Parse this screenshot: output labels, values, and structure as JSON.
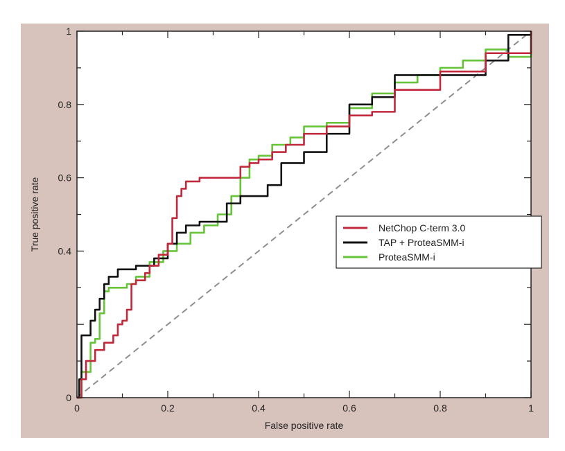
{
  "chart_data": {
    "type": "line",
    "title": "",
    "xlabel": "False positive rate",
    "ylabel": "True positive rate",
    "xlim": [
      0,
      1
    ],
    "ylim": [
      0,
      1
    ],
    "x_ticks": [
      0,
      0.2,
      0.4,
      0.6,
      0.8,
      1
    ],
    "x_tick_labels": [
      "0",
      "0.2",
      "0.4",
      "0.6",
      "0.8",
      "1"
    ],
    "y_ticks": [
      0,
      0.4,
      0.6,
      0.8,
      1
    ],
    "y_tick_labels": [
      "0",
      "0.4",
      "0.6",
      "0.8",
      "1"
    ],
    "grid": false,
    "legend_position": "right-middle",
    "series": [
      {
        "name": "NetChop C-term 3.0",
        "color": "#c0283c",
        "x": [
          0,
          0.01,
          0.02,
          0.04,
          0.06,
          0.08,
          0.09,
          0.1,
          0.11,
          0.12,
          0.13,
          0.15,
          0.16,
          0.18,
          0.2,
          0.21,
          0.22,
          0.23,
          0.24,
          0.27,
          0.3,
          0.33,
          0.36,
          0.38,
          0.4,
          0.43,
          0.46,
          0.5,
          0.55,
          0.6,
          0.65,
          0.7,
          0.8,
          0.9,
          1.0
        ],
        "y": [
          0,
          0.05,
          0.1,
          0.13,
          0.15,
          0.17,
          0.2,
          0.21,
          0.24,
          0.31,
          0.32,
          0.34,
          0.36,
          0.39,
          0.42,
          0.49,
          0.55,
          0.57,
          0.59,
          0.6,
          0.6,
          0.6,
          0.63,
          0.64,
          0.65,
          0.67,
          0.69,
          0.72,
          0.74,
          0.77,
          0.78,
          0.84,
          0.89,
          0.94,
          1.0
        ]
      },
      {
        "name": "TAP + ProteaSMM-i",
        "color": "#111111",
        "x": [
          0,
          0.005,
          0.01,
          0.03,
          0.04,
          0.05,
          0.06,
          0.07,
          0.09,
          0.11,
          0.13,
          0.15,
          0.17,
          0.2,
          0.22,
          0.24,
          0.27,
          0.3,
          0.33,
          0.36,
          0.4,
          0.42,
          0.45,
          0.5,
          0.55,
          0.6,
          0.65,
          0.7,
          0.75,
          0.8,
          0.85,
          0.9,
          0.95,
          1.0
        ],
        "y": [
          0,
          0.05,
          0.17,
          0.21,
          0.24,
          0.27,
          0.31,
          0.33,
          0.35,
          0.35,
          0.36,
          0.36,
          0.38,
          0.42,
          0.45,
          0.47,
          0.48,
          0.48,
          0.53,
          0.55,
          0.55,
          0.58,
          0.64,
          0.67,
          0.72,
          0.8,
          0.82,
          0.88,
          0.88,
          0.88,
          0.88,
          0.92,
          0.99,
          1.0
        ]
      },
      {
        "name": "ProteaSMM-i",
        "color": "#66c33a",
        "x": [
          0,
          0.01,
          0.03,
          0.04,
          0.05,
          0.06,
          0.07,
          0.09,
          0.11,
          0.13,
          0.16,
          0.19,
          0.22,
          0.25,
          0.28,
          0.31,
          0.34,
          0.36,
          0.38,
          0.4,
          0.43,
          0.47,
          0.5,
          0.55,
          0.6,
          0.65,
          0.7,
          0.75,
          0.8,
          0.85,
          0.9,
          0.95,
          1.0
        ],
        "y": [
          0,
          0.07,
          0.15,
          0.16,
          0.23,
          0.29,
          0.3,
          0.3,
          0.31,
          0.33,
          0.37,
          0.4,
          0.42,
          0.45,
          0.47,
          0.5,
          0.55,
          0.6,
          0.65,
          0.66,
          0.69,
          0.71,
          0.74,
          0.75,
          0.79,
          0.83,
          0.86,
          0.88,
          0.9,
          0.92,
          0.95,
          0.93,
          1.0
        ]
      }
    ],
    "reference_line": {
      "style": "dashed",
      "color": "#8e8e8e",
      "x": [
        0,
        1
      ],
      "y": [
        0,
        1
      ]
    }
  }
}
